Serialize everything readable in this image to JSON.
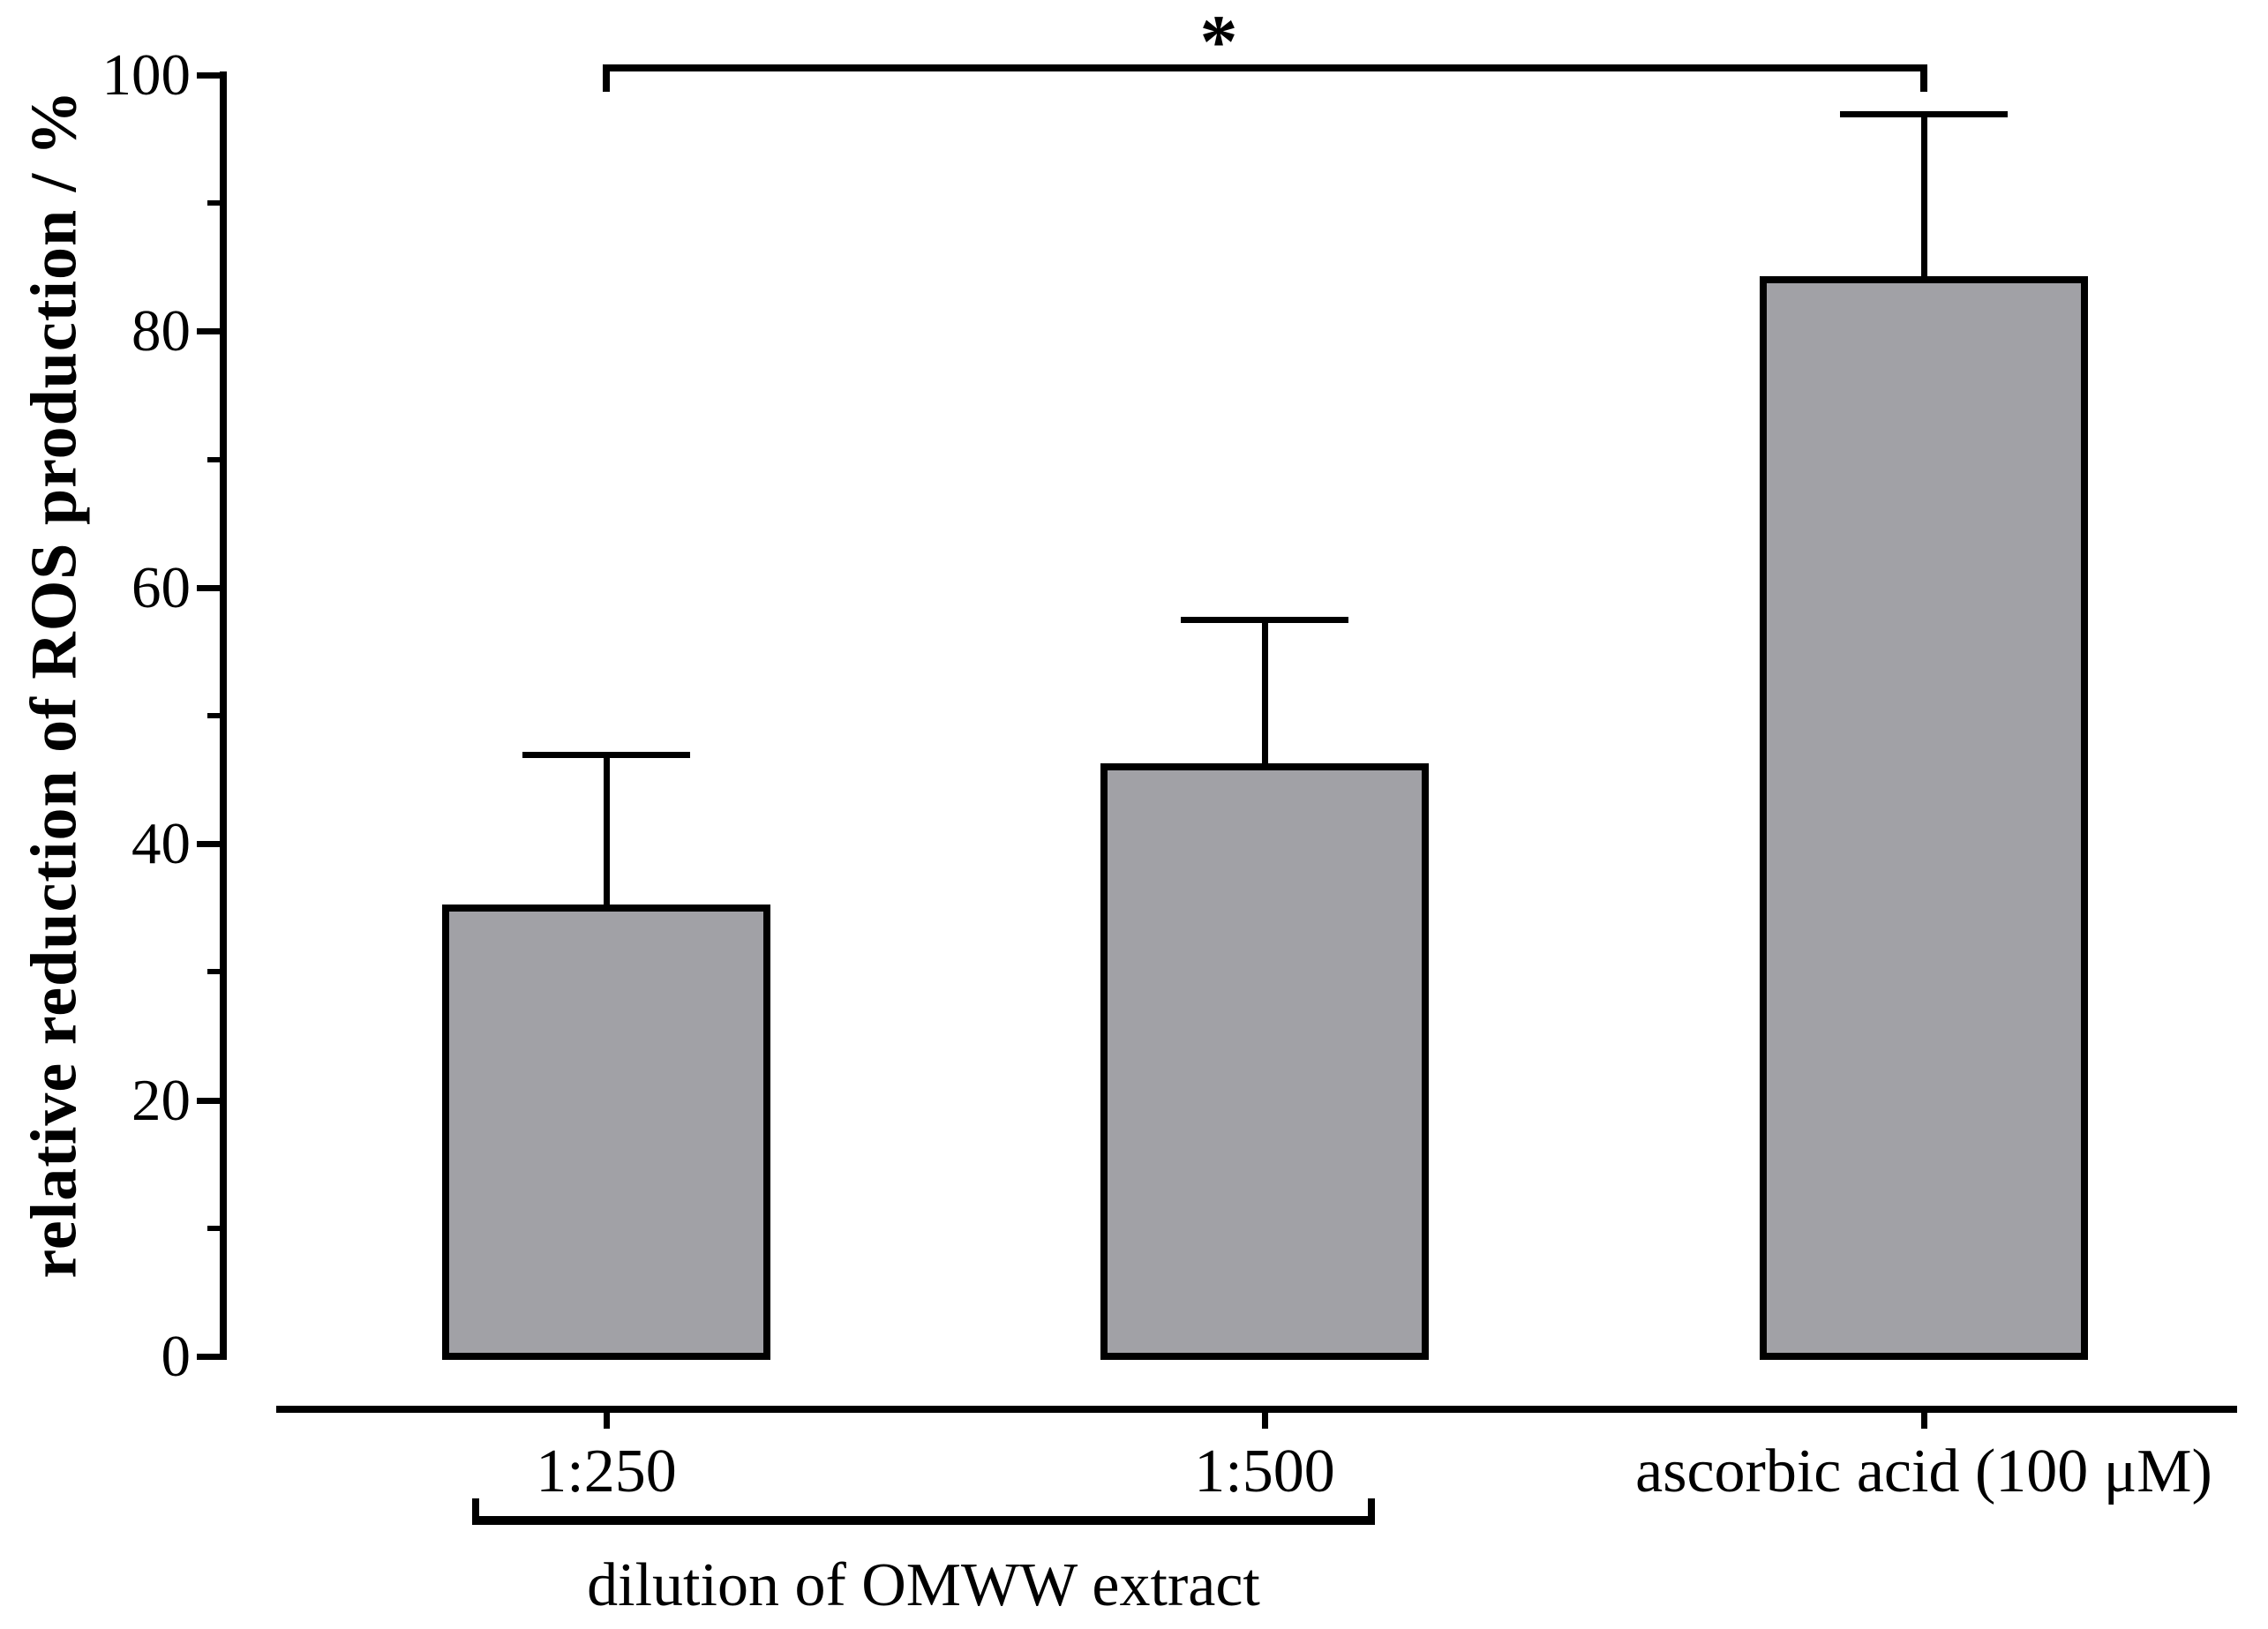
{
  "chart_data": {
    "type": "bar",
    "title": "",
    "categories": [
      "1:250",
      "1:500",
      "ascorbic acid (100 μM)"
    ],
    "values": [
      35,
      46,
      84
    ],
    "errors_up": [
      12,
      11.5,
      13
    ],
    "error_tops": [
      47,
      57.5,
      97
    ],
    "xlabel": "",
    "ylabel": "relative reduction of ROS production / %",
    "ylim": [
      0,
      100
    ],
    "yticks": [
      0,
      20,
      40,
      60,
      80,
      100
    ],
    "yticks_minor": [
      10,
      30,
      50,
      70,
      90
    ],
    "grid": false,
    "legend": null,
    "bar_fill_color": "#a1a1a6",
    "bar_edge_color": "#000000",
    "significance_bracket": {
      "label": "*",
      "from_category": "1:250",
      "to_category": "ascorbic acid (100 μM)"
    },
    "group_bracket": {
      "label": "dilution of OMWW extract",
      "from_category": "1:250",
      "to_category": "1:500"
    }
  }
}
